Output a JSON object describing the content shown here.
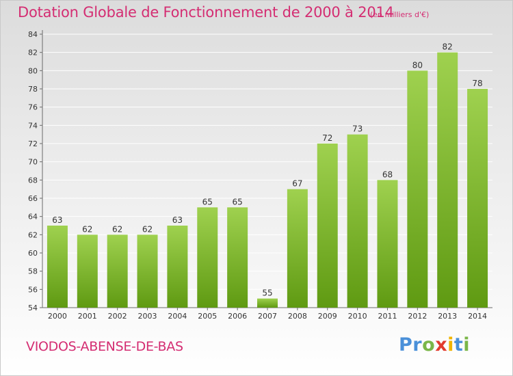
{
  "header": {
    "title": "Dotation Globale de Fonctionnement de 2000 à 2014",
    "subtitle": "(en milliers d'€)"
  },
  "footer": {
    "commune": "VIODOS-ABENSE-DE-BAS",
    "logo_text": "Proxiti"
  },
  "colors": {
    "title": "#d42d72",
    "bar_top": "#9fd14f",
    "bar_bottom": "#5f9a12",
    "axis": "#6a6a6a",
    "grid": "#ffffff"
  },
  "chart_data": {
    "type": "bar",
    "categories": [
      "2000",
      "2001",
      "2002",
      "2003",
      "2004",
      "2005",
      "2006",
      "2007",
      "2008",
      "2009",
      "2010",
      "2011",
      "2012",
      "2013",
      "2014"
    ],
    "values": [
      63,
      62,
      62,
      62,
      63,
      65,
      65,
      55,
      67,
      72,
      73,
      68,
      80,
      82,
      78
    ],
    "ylim": [
      54,
      84
    ],
    "yticks": [
      54,
      56,
      58,
      60,
      62,
      64,
      66,
      68,
      70,
      72,
      74,
      76,
      78,
      80,
      82,
      84
    ],
    "grid": true,
    "xlabel": "",
    "ylabel": ""
  }
}
